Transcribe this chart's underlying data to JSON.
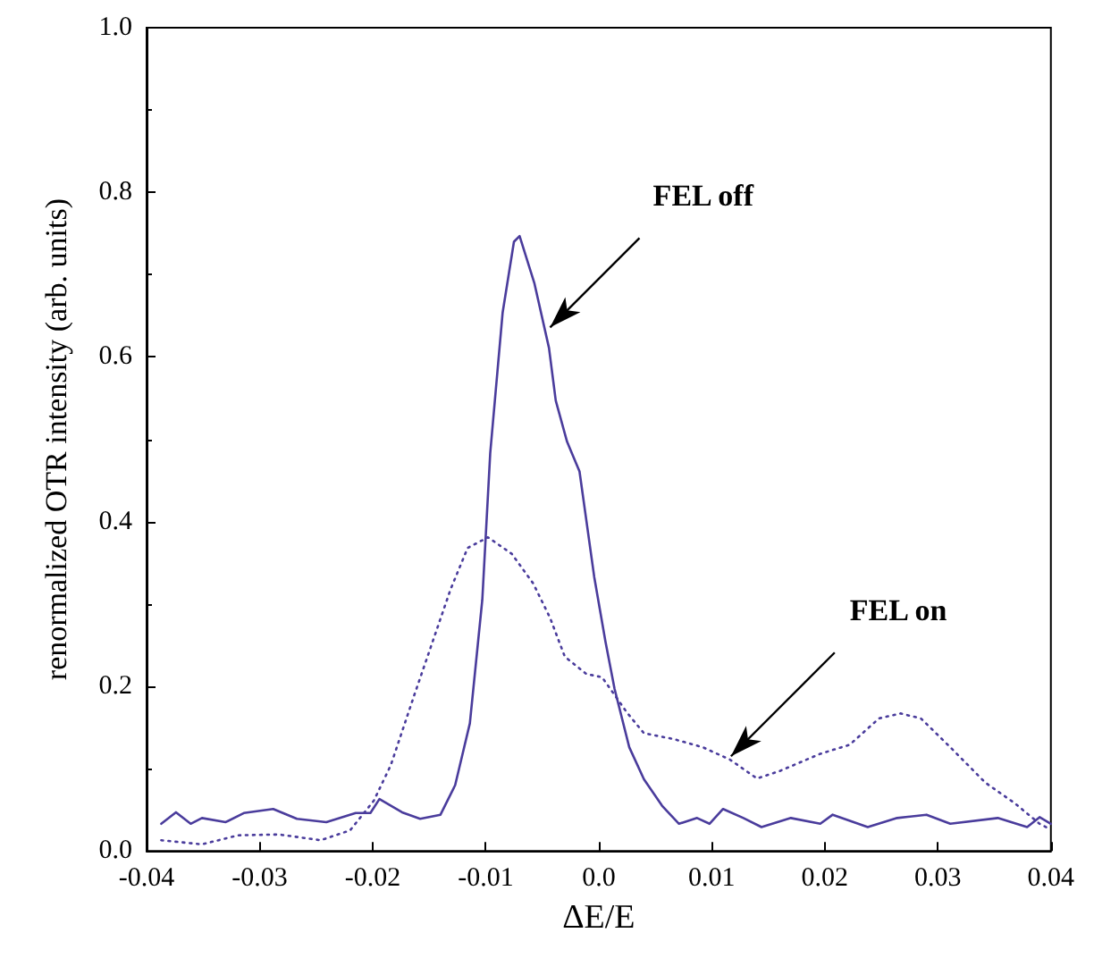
{
  "chart_data": {
    "type": "line",
    "xlabel": "ΔE/E",
    "ylabel": "renormalized OTR intensity (arb. units)",
    "xlim": [
      -0.04,
      0.04
    ],
    "xticks": [
      -0.04,
      -0.03,
      -0.02,
      -0.01,
      {
        "value": 0,
        "label": "0.0"
      },
      0.01,
      0.02,
      0.03,
      0.04
    ],
    "ylim": [
      0,
      1
    ],
    "yticks": [
      {
        "value": 0,
        "label": "0.0"
      },
      0.2,
      0.4,
      0.6,
      0.8,
      {
        "value": 1,
        "label": "1.0"
      }
    ],
    "marker": "none",
    "series": [
      {
        "color": "#4a3c9c",
        "line_style": "solid",
        "x": [
          -0.0387,
          -0.0374,
          -0.0361,
          -0.0351,
          -0.033,
          -0.0314,
          -0.0288,
          -0.0267,
          -0.0241,
          -0.0215,
          -0.0202,
          -0.0194,
          -0.0174,
          -0.0158,
          -0.014,
          -0.0127,
          -0.0114,
          -0.0103,
          -0.0096,
          -0.0085,
          -0.0075,
          -0.007,
          -0.0057,
          -0.0044,
          -0.0038,
          -0.0028,
          -0.0017,
          -0.0004,
          0.0006,
          0.0014,
          0.0027,
          0.004,
          0.0056,
          0.0071,
          0.0087,
          0.0098,
          0.011,
          0.0128,
          0.0144,
          0.017,
          0.0196,
          0.0207,
          0.0238,
          0.0264,
          0.029,
          0.0311,
          0.0353,
          0.0379,
          0.039,
          0.04
        ],
        "values": [
          0.033,
          0.047,
          0.033,
          0.04,
          0.035,
          0.046,
          0.051,
          0.039,
          0.035,
          0.046,
          0.046,
          0.063,
          0.047,
          0.039,
          0.044,
          0.08,
          0.155,
          0.305,
          0.483,
          0.654,
          0.74,
          0.747,
          0.69,
          0.611,
          0.547,
          0.497,
          0.461,
          0.333,
          0.254,
          0.197,
          0.126,
          0.087,
          0.055,
          0.033,
          0.04,
          0.033,
          0.051,
          0.04,
          0.029,
          0.04,
          0.033,
          0.044,
          0.029,
          0.04,
          0.044,
          0.033,
          0.04,
          0.029,
          0.041,
          0.033
        ]
      },
      {
        "color": "#4a3c9c",
        "line_style": "dotted",
        "x": [
          -0.0387,
          -0.0351,
          -0.0319,
          -0.0283,
          -0.0246,
          -0.022,
          -0.0199,
          -0.0184,
          -0.0163,
          -0.0147,
          -0.0131,
          -0.0116,
          -0.0098,
          -0.0077,
          -0.0058,
          -0.0043,
          -0.003,
          -0.0011,
          0.0003,
          0.0025,
          0.004,
          0.0066,
          0.0092,
          0.0116,
          0.014,
          0.016,
          0.0196,
          0.0222,
          0.0248,
          0.0267,
          0.0285,
          0.0311,
          0.0342,
          0.0368,
          0.039,
          0.04
        ],
        "values": [
          0.013,
          0.008,
          0.019,
          0.02,
          0.013,
          0.025,
          0.061,
          0.104,
          0.19,
          0.254,
          0.318,
          0.368,
          0.381,
          0.361,
          0.325,
          0.283,
          0.236,
          0.215,
          0.211,
          0.168,
          0.143,
          0.136,
          0.126,
          0.111,
          0.088,
          0.097,
          0.118,
          0.129,
          0.161,
          0.167,
          0.161,
          0.126,
          0.083,
          0.058,
          0.033,
          0.026
        ]
      }
    ],
    "annotations": [
      {
        "text": "FEL off",
        "x": -0.0043,
        "y": 0.636
      },
      {
        "text": "FEL on",
        "x": 0.0117,
        "y": 0.115
      }
    ]
  }
}
